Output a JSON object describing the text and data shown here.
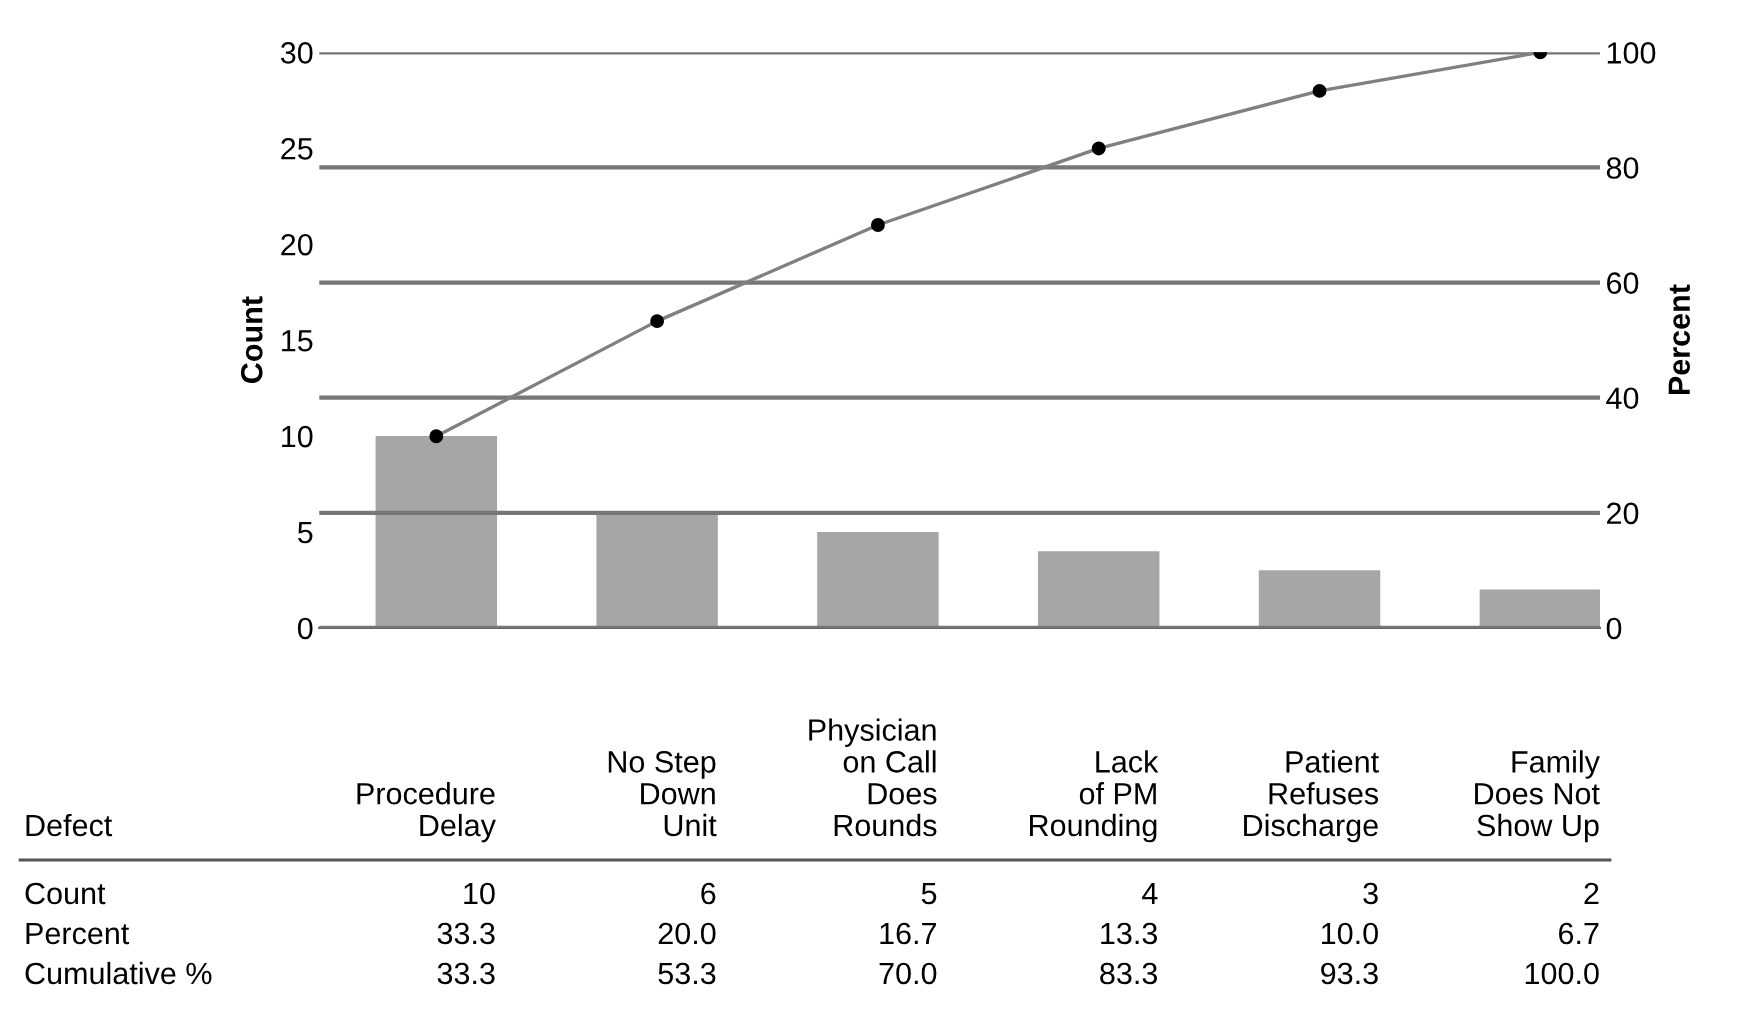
{
  "chart_data": {
    "type": "bar",
    "categories": [
      "Procedure\nDelay",
      "No Step\nDown\nUnit",
      "Physician\non Call\nDoes\nRounds",
      "Lack\nof PM\nRounding",
      "Patient\nRefuses\nDischarge",
      "Family\nDoes Not\nShow Up"
    ],
    "legend_title": "Defect",
    "ylabel": "Count",
    "y2label": "Percent",
    "ylim": [
      0,
      30
    ],
    "yticks": [
      0,
      5,
      10,
      15,
      20,
      25,
      30
    ],
    "y2lim": [
      0,
      100
    ],
    "y2ticks": [
      0,
      20,
      40,
      60,
      80,
      100
    ],
    "grid": "y2",
    "marker": "circle",
    "data_labels": true,
    "series": [
      {
        "color": "#a6a6a6",
        "values": [
          10,
          6,
          5,
          4,
          3,
          2
        ]
      },
      {
        "type": "line",
        "axis": "y2",
        "color": "#808080",
        "values": [
          33.3,
          53.3,
          70.0,
          83.3,
          93.3,
          100.0
        ],
        "value_labels": [
          "33.3",
          "53.3",
          "70.0",
          "83.3",
          "93.3",
          "100.0"
        ]
      }
    ],
    "annotations": [
      "Count",
      "Percent",
      "Cumulative %",
      "33.3",
      "20.0",
      "16.7",
      "13.3",
      "10.0",
      "6.7"
    ]
  }
}
